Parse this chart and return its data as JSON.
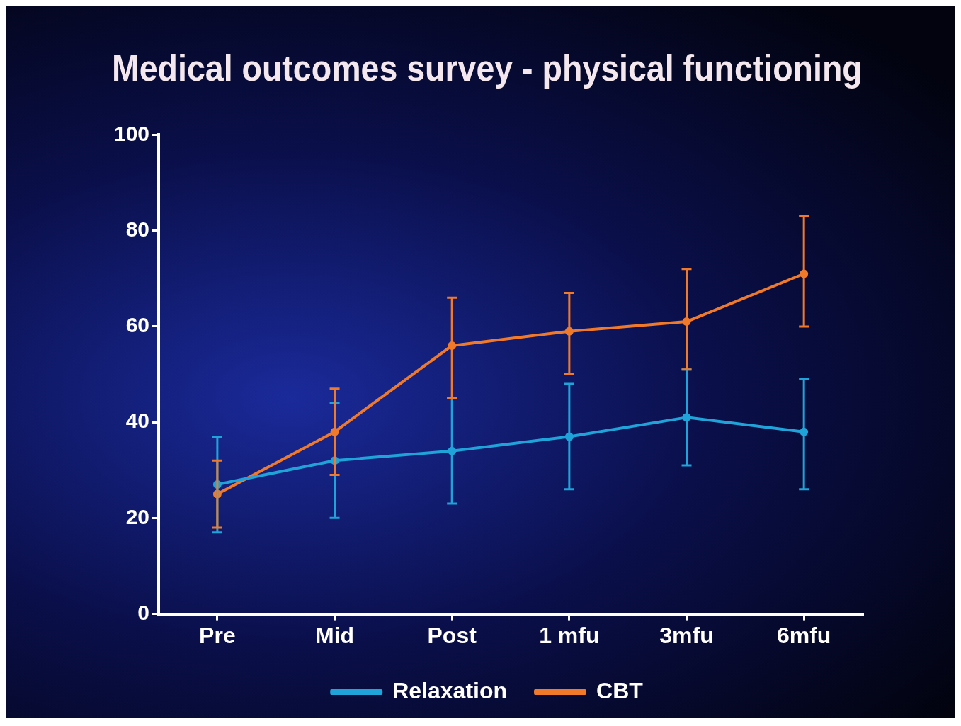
{
  "chart_data": {
    "type": "line",
    "title": "Medical outcomes survey - physical functioning",
    "categories": [
      "Pre",
      "Mid",
      "Post",
      "1 mfu",
      "3mfu",
      "6mfu"
    ],
    "series": [
      {
        "name": "Relaxation",
        "color": "#1fa3d8",
        "values": [
          27,
          32,
          34,
          37,
          41,
          38
        ],
        "errors": [
          [
            17,
            37
          ],
          [
            20,
            44
          ],
          [
            23,
            45
          ],
          [
            26,
            48
          ],
          [
            31,
            51
          ],
          [
            26,
            49
          ]
        ]
      },
      {
        "name": "CBT",
        "color": "#f07a2a",
        "values": [
          25,
          38,
          56,
          59,
          61,
          71
        ],
        "errors": [
          [
            18,
            32
          ],
          [
            29,
            47
          ],
          [
            45,
            66
          ],
          [
            50,
            67
          ],
          [
            51,
            72
          ],
          [
            60,
            83
          ]
        ]
      }
    ],
    "ylim": [
      0,
      100
    ],
    "yticks": [
      0,
      20,
      40,
      60,
      80,
      100
    ],
    "grid": false,
    "legend": "bottom",
    "marker": "circle",
    "line_style": "solid"
  }
}
